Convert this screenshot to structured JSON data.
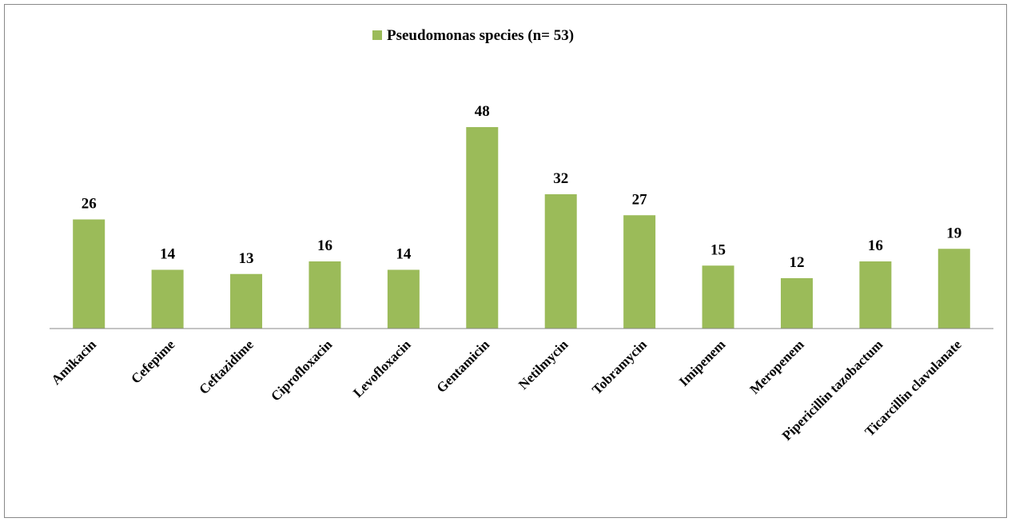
{
  "chart_data": {
    "type": "bar",
    "categories": [
      "Amikacin",
      "Cefepime",
      "Ceftazidime",
      "Ciprofloxacin",
      "Levofloxacin",
      "Gentamicin",
      "Netilmycin",
      "Tobramycin",
      "Imipenem",
      "Meropenem",
      "Pipericillin tazobactum",
      "Ticarcillin clavulanate"
    ],
    "series": [
      {
        "name": "Pseudomonas species (n= 53)",
        "color": "#9bbb59",
        "values": [
          26,
          14,
          13,
          16,
          14,
          48,
          32,
          27,
          15,
          12,
          16,
          19
        ]
      }
    ],
    "legend": "top"
  }
}
